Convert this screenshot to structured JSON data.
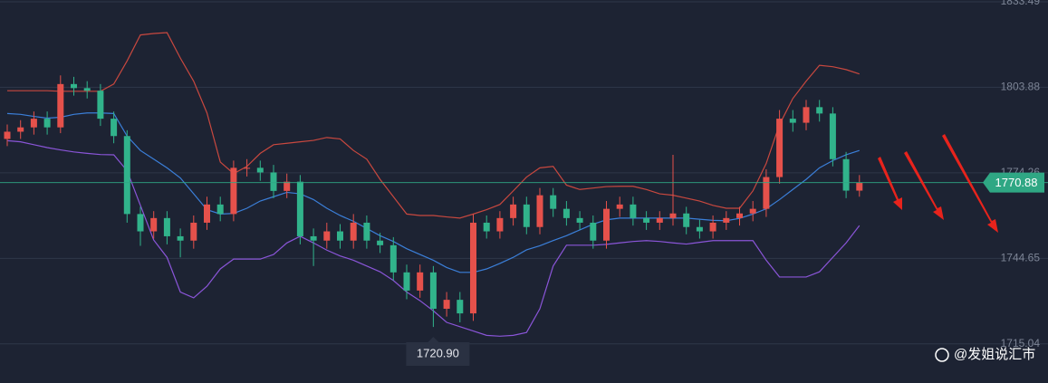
{
  "chart_data": {
    "type": "candlestick",
    "open": [
      1786,
      1788.5,
      1790,
      1793,
      1790,
      1805,
      1803.6,
      1802.7,
      1793,
      1787,
      1760,
      1754,
      1758.6,
      1752.3,
      1750.8,
      1757,
      1763.3,
      1760,
      1776,
      1776,
      1774.4,
      1768,
      1771.2,
      1752.3,
      1750.8,
      1754,
      1750.8,
      1757,
      1750.8,
      1749.2,
      1739.8,
      1733.5,
      1739.8,
      1727.2,
      1730.3,
      1725.6,
      1757,
      1754,
      1758.6,
      1763.3,
      1755.5,
      1766.5,
      1761.8,
      1758.6,
      1757,
      1750.8,
      1761.8,
      1763.3,
      1758.6,
      1757,
      1758.6,
      1760.2,
      1755.5,
      1754,
      1757,
      1758.6,
      1760.2,
      1761.8,
      1772.8,
      1793,
      1791.6,
      1797,
      1794.8,
      1779,
      1768.1
    ],
    "high": [
      1791,
      1792.5,
      1795.5,
      1795.5,
      1808,
      1807.5,
      1806,
      1805,
      1795.5,
      1789,
      1762.5,
      1761,
      1761,
      1755,
      1759.5,
      1766,
      1766,
      1778.5,
      1779,
      1778.5,
      1777,
      1774,
      1773.5,
      1755,
      1757,
      1756.5,
      1760,
      1759.5,
      1753.5,
      1752,
      1742.5,
      1742.5,
      1742,
      1733,
      1733,
      1760,
      1759.5,
      1761,
      1766,
      1766,
      1769,
      1769,
      1764.5,
      1761,
      1759.5,
      1764.5,
      1766,
      1766,
      1761,
      1761,
      1780.5,
      1762.5,
      1758,
      1759.5,
      1761,
      1762.5,
      1764.5,
      1775.5,
      1796,
      1796,
      1799.5,
      1799.5,
      1797,
      1781.5,
      1773.5
    ],
    "low": [
      1783.5,
      1786,
      1787.5,
      1787.5,
      1788,
      1801,
      1800,
      1790.5,
      1784.5,
      1757,
      1749,
      1751.5,
      1749.5,
      1745,
      1748,
      1754.5,
      1757.5,
      1757.5,
      1773,
      1771.5,
      1765.5,
      1765.5,
      1749.5,
      1742,
      1748,
      1748,
      1748,
      1748,
      1746.5,
      1737,
      1730.5,
      1731,
      1720.9,
      1724.5,
      1722.5,
      1723,
      1751.5,
      1751.5,
      1756,
      1753,
      1753,
      1759,
      1756,
      1754.5,
      1748,
      1748,
      1759,
      1756,
      1754.5,
      1754.5,
      1756,
      1753,
      1751.5,
      1751.5,
      1754.5,
      1756,
      1757.5,
      1759,
      1770.5,
      1788.5,
      1789,
      1792,
      1776.5,
      1765.5,
      1766
    ],
    "close": [
      1788.5,
      1790,
      1793,
      1790,
      1805,
      1803.6,
      1802.7,
      1793,
      1787,
      1760,
      1754,
      1758.6,
      1752.3,
      1750.8,
      1757,
      1763.3,
      1760,
      1776,
      1776,
      1774.4,
      1768,
      1771.2,
      1752.3,
      1750.8,
      1754,
      1750.8,
      1757,
      1750.8,
      1749.2,
      1739.8,
      1733.5,
      1739.8,
      1727.2,
      1730.3,
      1725.6,
      1757,
      1754,
      1758.6,
      1763.3,
      1755.5,
      1766.5,
      1761.8,
      1758.6,
      1757,
      1750.8,
      1761.8,
      1763.3,
      1758.6,
      1757,
      1758.6,
      1760.2,
      1755.5,
      1754,
      1757,
      1758.6,
      1760.2,
      1761.8,
      1772.8,
      1793,
      1791.6,
      1797,
      1794.8,
      1779,
      1768.1,
      1770.88
    ],
    "up_color": "#e5514b",
    "down_color": "#31b38b",
    "bands": [
      {
        "color": "#c8483f",
        "values": [
          1802.7,
          1802.7,
          1802.7,
          1802.7,
          1802.5,
          1802.5,
          1802.5,
          1802.5,
          1805,
          1813,
          1822,
          1822.5,
          1822.8,
          1814,
          1806,
          1795,
          1778,
          1774,
          1776.5,
          1781,
          1784,
          1784.5,
          1785,
          1785.5,
          1786.5,
          1786,
          1782,
          1779,
          1772,
          1766,
          1760,
          1759.5,
          1759.5,
          1759,
          1758.6,
          1760,
          1761.5,
          1763.3,
          1768,
          1772.8,
          1776,
          1776.5,
          1770,
          1768.5,
          1769,
          1769.5,
          1769.6,
          1769.6,
          1768.5,
          1767,
          1766.5,
          1765.5,
          1764.5,
          1763,
          1762,
          1762,
          1768,
          1777.5,
          1791,
          1800,
          1806,
          1811.5,
          1811,
          1810,
          1808.5
        ]
      },
      {
        "color": "#3b7fd9",
        "values": [
          1794.8,
          1794.5,
          1793.8,
          1793.2,
          1793.5,
          1794.5,
          1795,
          1795,
          1794.8,
          1787,
          1782,
          1779,
          1776,
          1772.5,
          1767,
          1761.5,
          1760,
          1760.2,
          1762,
          1764.5,
          1766,
          1767.5,
          1767,
          1765,
          1762,
          1759.5,
          1757.5,
          1755,
          1752.5,
          1750.5,
          1748,
          1746,
          1744,
          1741.5,
          1739.8,
          1739.8,
          1741,
          1742.9,
          1745,
          1747.6,
          1749,
          1750.8,
          1752.5,
          1754.5,
          1756.5,
          1758,
          1758.6,
          1758.6,
          1758.6,
          1758.6,
          1758.6,
          1758.6,
          1758.2,
          1757.8,
          1757.7,
          1758.5,
          1760,
          1761.8,
          1765,
          1768.5,
          1772,
          1776,
          1778.5,
          1780.5,
          1782
        ]
      },
      {
        "color": "#8a55d8",
        "values": [
          1785.4,
          1785,
          1784,
          1783,
          1782.2,
          1781.5,
          1781,
          1780.6,
          1780.5,
          1775,
          1763,
          1751,
          1745,
          1733,
          1731,
          1735,
          1741,
          1744.4,
          1744.4,
          1744.4,
          1746,
          1750,
          1752.3,
          1750,
          1747.5,
          1745.5,
          1744,
          1742,
          1740,
          1737,
          1733,
          1730,
          1726.5,
          1722.5,
          1721,
          1719.5,
          1718,
          1717.7,
          1718,
          1719,
          1727.2,
          1742,
          1749.2,
          1749.2,
          1749.2,
          1749.5,
          1750,
          1750.5,
          1750.8,
          1750.5,
          1750,
          1749.6,
          1750.2,
          1750.8,
          1750.8,
          1750.8,
          1750.8,
          1744,
          1738.2,
          1738.2,
          1738.2,
          1740,
          1745,
          1750,
          1756
        ]
      }
    ],
    "ylim": [
      1701.5,
      1834.1
    ],
    "yticks": [
      1833.49,
      1803.88,
      1774.26,
      1744.65,
      1715.04
    ],
    "grid": true,
    "last_price": 1770.88,
    "low_marker": {
      "value": 1720.9,
      "label": "1720.90"
    },
    "watermark": "@发姐说汇市"
  }
}
